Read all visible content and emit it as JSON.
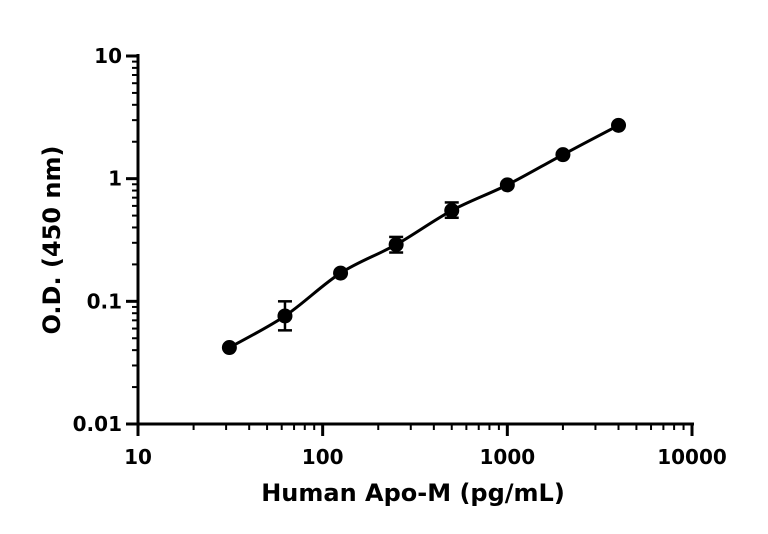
{
  "chart_data": {
    "type": "scatter",
    "title": "",
    "xlabel": "Human Apo-M (pg/mL)",
    "ylabel": "O.D. (450 nm)",
    "xscale": "log",
    "yscale": "log",
    "xlim": [
      10,
      10000
    ],
    "ylim": [
      0.01,
      10
    ],
    "xticks": [
      "10",
      "100",
      "1000",
      "10000"
    ],
    "yticks": [
      "0.01",
      "0.1",
      "1",
      "10"
    ],
    "grid": false,
    "fit": "curve through points",
    "series": [
      {
        "x": [
          31.25,
          62.5,
          125,
          250,
          500,
          1000,
          2000,
          4000
        ],
        "y": [
          0.042,
          0.076,
          0.17,
          0.29,
          0.55,
          0.89,
          1.57,
          2.72
        ],
        "err_low": [
          0.042,
          0.058,
          0.17,
          0.25,
          0.48,
          0.89,
          1.57,
          2.72
        ],
        "err_high": [
          0.042,
          0.1,
          0.17,
          0.335,
          0.64,
          0.89,
          1.57,
          2.72
        ]
      }
    ]
  }
}
